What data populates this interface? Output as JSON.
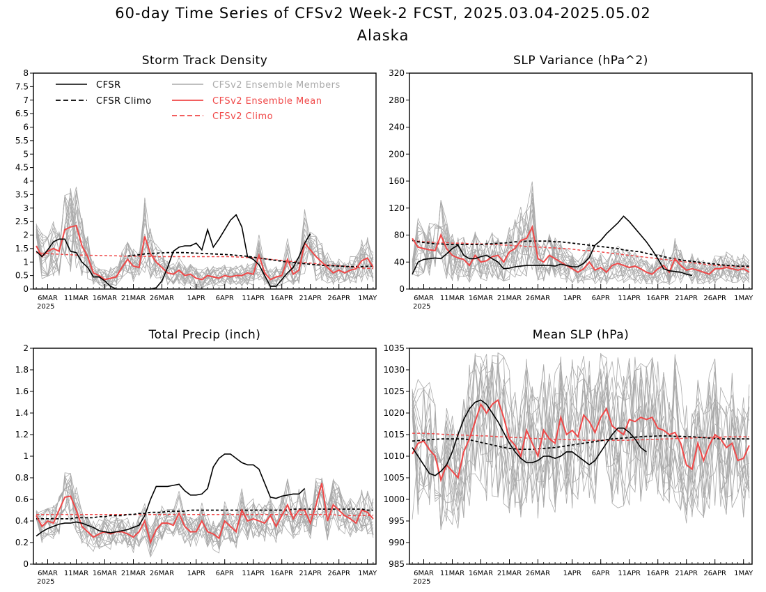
{
  "figure": {
    "title_line1": "60-day Time Series of CFSv2 Week-2 FCST, 2025.03.04-2025.05.02",
    "title_line2": "Alaska"
  },
  "colors": {
    "cfsr": "#000000",
    "cfsr_climo": "#000000",
    "members": "#aaaaaa",
    "ensemble_mean": "#f04848",
    "cfsv2_climo": "#f04848"
  },
  "legend": {
    "cfsr": "CFSR",
    "cfsr_climo": "CFSR Climo",
    "members": "CFSv2 Ensemble Members",
    "ensemble_mean": "CFSv2 Ensemble Mean",
    "cfsv2_climo": "CFSv2 Climo"
  },
  "x_axis": {
    "tick_labels": [
      "6MAR",
      "11MAR",
      "16MAR",
      "21MAR",
      "26MAR",
      "1APR",
      "6APR",
      "11APR",
      "16APR",
      "21APR",
      "26APR",
      "1MAY"
    ],
    "tick_days": [
      2,
      7,
      12,
      17,
      22,
      28,
      33,
      38,
      43,
      48,
      53,
      58
    ],
    "year_label": "2025",
    "n_days": 60
  },
  "chart_data": [
    {
      "type": "line",
      "title": "Storm Track Density",
      "ylim": [
        0,
        8
      ],
      "yticks": [
        "0",
        "0.5",
        "1",
        "1.5",
        "2",
        "2.5",
        "3",
        "3.5",
        "4",
        "4.5",
        "5",
        "5.5",
        "6",
        "6.5",
        "7",
        "7.5",
        "8"
      ],
      "legend": true,
      "cfsr": [
        1.4,
        1.2,
        1.45,
        1.75,
        1.85,
        1.85,
        1.4,
        1.35,
        1.0,
        0.8,
        0.45,
        0.45,
        0.3,
        0.1,
        0.0,
        0.0,
        0.0,
        0.0,
        0.0,
        0.0,
        0.0,
        0.05,
        0.3,
        0.8,
        1.4,
        1.55,
        1.6,
        1.6,
        1.7,
        1.45,
        2.2,
        1.55,
        1.85,
        2.2,
        2.55,
        2.75,
        2.3,
        1.2,
        1.1,
        0.9,
        0.5,
        0.1,
        0.1,
        0.35,
        0.6,
        0.8,
        1.2,
        1.7,
        2.05
      ],
      "cfsr_climo": [
        null,
        null,
        null,
        null,
        null,
        null,
        null,
        null,
        null,
        null,
        null,
        null,
        null,
        null,
        null,
        null,
        1.22,
        1.25,
        1.27,
        1.3,
        1.32,
        1.33,
        1.34,
        1.35,
        1.35,
        1.35,
        1.35,
        1.34,
        1.33,
        1.32,
        1.31,
        1.3,
        1.29,
        1.28,
        1.27,
        1.25,
        1.23,
        1.21,
        1.18,
        1.15,
        1.12,
        1.09,
        1.06,
        1.03,
        1.0,
        0.98,
        0.96,
        0.94,
        0.92,
        0.9,
        0.88,
        0.87,
        0.86,
        0.85,
        0.84,
        0.83,
        0.83,
        0.83,
        0.84,
        0.85
      ],
      "ensemble_mean": [
        1.6,
        1.2,
        1.4,
        1.5,
        1.4,
        2.2,
        2.3,
        2.35,
        1.6,
        1.2,
        0.6,
        0.5,
        0.35,
        0.4,
        0.45,
        0.8,
        1.1,
        0.85,
        0.8,
        1.95,
        1.3,
        1.0,
        0.8,
        0.6,
        0.55,
        0.7,
        0.5,
        0.55,
        0.4,
        0.35,
        0.5,
        0.45,
        0.4,
        0.5,
        0.45,
        0.5,
        0.5,
        0.6,
        0.55,
        1.25,
        0.6,
        0.35,
        0.45,
        0.5,
        1.1,
        0.55,
        0.7,
        1.7,
        1.45,
        1.2,
        1.0,
        0.8,
        0.6,
        0.7,
        0.6,
        0.7,
        0.75,
        1.05,
        1.15,
        0.8
      ],
      "cfsv2_climo": [
        1.35,
        1.33,
        1.31,
        1.3,
        1.29,
        1.28,
        1.27,
        1.26,
        1.26,
        1.25,
        1.25,
        1.24,
        1.24,
        1.23,
        1.23,
        1.22,
        1.22,
        1.22,
        1.21,
        1.21,
        1.21,
        1.2,
        1.2,
        1.2,
        1.2,
        1.2,
        1.2,
        1.2,
        1.2,
        1.2,
        1.2,
        1.2,
        1.2,
        1.2,
        1.2,
        1.19,
        1.18,
        1.17,
        1.16,
        1.14,
        1.12,
        1.1,
        1.08,
        1.06,
        1.04,
        1.02,
        1.0,
        0.98,
        0.96,
        0.94,
        0.92,
        0.9,
        0.88,
        0.86,
        0.84,
        0.82,
        0.8,
        0.78,
        0.77,
        0.76
      ],
      "members": {
        "count": 16,
        "spread_fraction": 0.75,
        "min_spread": 0.4,
        "cap": 3.9
      }
    },
    {
      "type": "line",
      "title": "SLP Variance (hPa^2)",
      "ylim": [
        0,
        320
      ],
      "yticks": [
        "0",
        "40",
        "80",
        "120",
        "160",
        "200",
        "240",
        "280",
        "320"
      ],
      "legend": false,
      "cfsr": [
        22,
        40,
        44,
        45,
        46,
        45,
        52,
        60,
        65,
        50,
        45,
        45,
        48,
        50,
        45,
        40,
        30,
        31,
        33,
        34,
        35,
        35,
        35,
        35,
        35,
        34,
        37,
        35,
        33,
        33,
        38,
        47,
        65,
        72,
        82,
        90,
        98,
        108,
        100,
        90,
        80,
        70,
        58,
        45,
        30,
        27,
        26,
        25,
        22,
        20
      ],
      "cfsr_climo": [
        72,
        70,
        69,
        68,
        67,
        67,
        66,
        66,
        66,
        66,
        66,
        66,
        66,
        67,
        67,
        68,
        68,
        69,
        70,
        70,
        71,
        71,
        71,
        71,
        71,
        70,
        70,
        69,
        68,
        67,
        66,
        65,
        64,
        63,
        62,
        61,
        60,
        58,
        57,
        56,
        55,
        53,
        51,
        50,
        48,
        46,
        45,
        43,
        42,
        41,
        40,
        39,
        38,
        37,
        36,
        35,
        35,
        34,
        34,
        34
      ],
      "ensemble_mean": [
        75,
        62,
        60,
        58,
        57,
        80,
        60,
        50,
        46,
        44,
        35,
        50,
        40,
        42,
        48,
        50,
        40,
        55,
        60,
        72,
        75,
        92,
        45,
        40,
        50,
        45,
        40,
        35,
        30,
        25,
        30,
        40,
        28,
        32,
        25,
        35,
        38,
        35,
        32,
        34,
        30,
        25,
        22,
        30,
        35,
        25,
        45,
        35,
        28,
        30,
        28,
        25,
        22,
        30,
        30,
        32,
        30,
        28,
        30,
        25
      ],
      "cfsv2_climo": [
        72,
        71,
        70,
        70,
        69,
        69,
        69,
        68,
        68,
        68,
        67,
        67,
        67,
        66,
        66,
        66,
        65,
        65,
        64,
        64,
        63,
        63,
        62,
        62,
        61,
        61,
        60,
        60,
        59,
        58,
        57,
        57,
        56,
        55,
        54,
        53,
        52,
        51,
        50,
        49,
        48,
        47,
        46,
        45,
        44,
        43,
        42,
        41,
        40,
        39,
        38,
        37,
        36,
        35,
        35,
        34,
        34,
        33,
        33,
        32
      ],
      "members": {
        "count": 16,
        "spread_fraction": 0.75,
        "min_spread": 15,
        "cap": 160
      }
    },
    {
      "type": "line",
      "title": "Total Precip (inch)",
      "ylim": [
        0,
        2
      ],
      "yticks": [
        "0",
        "0.2",
        "0.4",
        "0.6",
        "0.8",
        "1",
        "1.2",
        "1.4",
        "1.6",
        "1.8",
        "2"
      ],
      "legend": false,
      "cfsr": [
        0.26,
        0.3,
        0.33,
        0.35,
        0.37,
        0.38,
        0.38,
        0.39,
        0.38,
        0.36,
        0.34,
        0.31,
        0.3,
        0.29,
        0.3,
        0.31,
        0.32,
        0.34,
        0.36,
        0.45,
        0.6,
        0.72,
        0.72,
        0.72,
        0.73,
        0.74,
        0.68,
        0.64,
        0.64,
        0.65,
        0.7,
        0.9,
        0.98,
        1.02,
        1.02,
        0.98,
        0.94,
        0.92,
        0.92,
        0.88,
        0.75,
        0.62,
        0.61,
        0.63,
        0.64,
        0.65,
        0.65,
        0.7
      ],
      "cfsr_climo": [
        0.42,
        0.42,
        0.42,
        0.42,
        0.42,
        0.42,
        0.42,
        0.43,
        0.43,
        0.43,
        0.43,
        0.44,
        0.44,
        0.45,
        0.45,
        0.45,
        0.46,
        0.46,
        0.47,
        0.47,
        0.48,
        0.48,
        0.48,
        0.49,
        0.49,
        0.49,
        0.49,
        0.5,
        0.5,
        0.5,
        0.5,
        0.5,
        0.5,
        0.5,
        0.5,
        0.5,
        0.5,
        0.5,
        0.5,
        0.5,
        0.5,
        0.5,
        0.5,
        0.5,
        0.5,
        0.51,
        0.51,
        0.51,
        0.51,
        0.51,
        0.51,
        0.51,
        0.51,
        0.51,
        0.51,
        0.51,
        0.51,
        0.51,
        0.5,
        0.5
      ],
      "ensemble_mean": [
        0.45,
        0.35,
        0.4,
        0.38,
        0.5,
        0.62,
        0.63,
        0.5,
        0.35,
        0.3,
        0.25,
        0.28,
        0.3,
        0.28,
        0.3,
        0.3,
        0.28,
        0.25,
        0.3,
        0.4,
        0.2,
        0.32,
        0.38,
        0.38,
        0.36,
        0.47,
        0.35,
        0.3,
        0.3,
        0.4,
        0.3,
        0.28,
        0.24,
        0.4,
        0.35,
        0.3,
        0.5,
        0.4,
        0.42,
        0.4,
        0.38,
        0.45,
        0.35,
        0.45,
        0.55,
        0.42,
        0.5,
        0.5,
        0.38,
        0.55,
        0.75,
        0.4,
        0.55,
        0.5,
        0.45,
        0.42,
        0.38,
        0.5,
        0.48,
        0.42
      ],
      "cfsv2_climo": [
        0.46,
        0.46,
        0.46,
        0.46,
        0.46,
        0.46,
        0.46,
        0.46,
        0.46,
        0.46,
        0.46,
        0.46,
        0.46,
        0.46,
        0.46,
        0.46,
        0.46,
        0.46,
        0.46,
        0.46,
        0.46,
        0.46,
        0.46,
        0.46,
        0.46,
        0.46,
        0.46,
        0.46,
        0.46,
        0.46,
        0.46,
        0.46,
        0.46,
        0.46,
        0.46,
        0.46,
        0.46,
        0.46,
        0.46,
        0.46,
        0.46,
        0.46,
        0.46,
        0.46,
        0.46,
        0.46,
        0.46,
        0.46,
        0.46,
        0.46,
        0.46,
        0.46,
        0.46,
        0.45,
        0.45,
        0.45,
        0.45,
        0.45,
        0.45,
        0.45
      ],
      "members": {
        "count": 16,
        "spread_fraction": 0.45,
        "min_spread": 0.15,
        "cap": 0.85
      }
    },
    {
      "type": "line",
      "title": "Mean SLP (hPa)",
      "ylim": [
        985,
        1035
      ],
      "yticks": [
        "985",
        "990",
        "995",
        "1000",
        "1005",
        "1010",
        "1015",
        "1020",
        "1025",
        "1030",
        "1035"
      ],
      "legend": false,
      "cfsr": [
        1012,
        1010,
        1008,
        1006,
        1005.5,
        1006.5,
        1008,
        1011,
        1015,
        1018.5,
        1021,
        1022.5,
        1023,
        1022,
        1020,
        1018,
        1015.5,
        1013,
        1011,
        1009.5,
        1008.5,
        1008.5,
        1009,
        1010,
        1010,
        1009.5,
        1010,
        1011,
        1011,
        1010,
        1009,
        1008,
        1009,
        1011,
        1013,
        1015,
        1016.5,
        1016.5,
        1015.5,
        1014,
        1012,
        1011
      ],
      "cfsr_climo": [
        1013.5,
        1013.6,
        1013.7,
        1013.8,
        1013.9,
        1014,
        1014,
        1014,
        1014,
        1014,
        1013.8,
        1013.5,
        1013.2,
        1012.9,
        1012.6,
        1012.3,
        1012,
        1011.8,
        1011.7,
        1011.6,
        1011.6,
        1011.6,
        1011.7,
        1011.8,
        1011.9,
        1012,
        1012.2,
        1012.4,
        1012.6,
        1012.8,
        1013,
        1013.2,
        1013.4,
        1013.6,
        1013.8,
        1014,
        1014.1,
        1014.2,
        1014.3,
        1014.4,
        1014.5,
        1014.6,
        1014.6,
        1014.7,
        1014.7,
        1014.7,
        1014.6,
        1014.6,
        1014.5,
        1014.5,
        1014.4,
        1014.3,
        1014.2,
        1014.1,
        1014,
        1014,
        1014,
        1014,
        1014,
        1014
      ],
      "ensemble_mean": [
        1010.5,
        1013,
        1013.5,
        1011.5,
        1010,
        1004.5,
        1008,
        1006.5,
        1005,
        1011,
        1014,
        1018,
        1022,
        1020,
        1022,
        1023,
        1019,
        1014,
        1012.5,
        1010,
        1016,
        1013,
        1010,
        1016,
        1014,
        1013,
        1019,
        1015,
        1016,
        1014.5,
        1019.5,
        1018,
        1015.5,
        1019,
        1021,
        1017,
        1016,
        1015,
        1018.5,
        1018,
        1019,
        1018.5,
        1019,
        1016.5,
        1016,
        1015,
        1015.5,
        1013,
        1008,
        1007,
        1013,
        1009,
        1012.5,
        1015,
        1014,
        1012,
        1013,
        1009,
        1009.5,
        1012.5
      ],
      "cfsv2_climo": [
        1015.3,
        1015.3,
        1015.3,
        1015.2,
        1015.2,
        1015.1,
        1015,
        1015,
        1014.9,
        1014.9,
        1014.8,
        1014.8,
        1014.7,
        1014.7,
        1014.6,
        1014.5,
        1014.5,
        1014.4,
        1014.3,
        1014.3,
        1014.2,
        1014.1,
        1014.1,
        1014,
        1014,
        1013.9,
        1013.9,
        1013.8,
        1013.8,
        1013.8,
        1013.7,
        1013.7,
        1013.7,
        1013.7,
        1013.7,
        1013.7,
        1013.7,
        1013.7,
        1013.7,
        1013.8,
        1013.8,
        1013.8,
        1013.9,
        1013.9,
        1014,
        1014,
        1014.1,
        1014.1,
        1014.2,
        1014.2,
        1014.3,
        1014.3,
        1014.4,
        1014.4,
        1014.4,
        1014.5,
        1014.5,
        1014.5,
        1014.5,
        1014.5
      ],
      "members": {
        "count": 16,
        "spread_fraction": 0.6,
        "min_spread": 3.0,
        "cap": 1034
      }
    }
  ]
}
